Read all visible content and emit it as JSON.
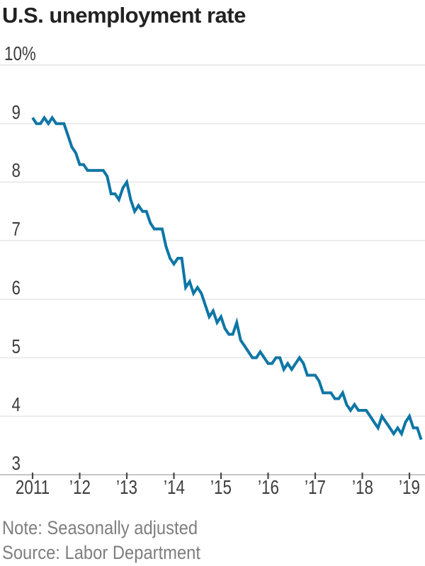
{
  "header": {
    "title": "U.S. unemployment rate"
  },
  "footer": {
    "note": "Note: Seasonally adjusted",
    "source": "Source: Labor Department"
  },
  "chart_data": {
    "type": "line",
    "title": "U.S. unemployment rate",
    "unit": "%",
    "frequency": "monthly",
    "x_start": "2011-01",
    "x_end": "2019-04",
    "ylim": [
      3,
      10
    ],
    "grid": "horizontal",
    "line_color": "#0d76a6",
    "gridline_color": "#e4e4e4",
    "axis_color": "#b3b3b3",
    "tick_color": "#474747",
    "label_color": "#3d3d3d",
    "series": [
      {
        "name": "U.S. unemployment rate",
        "values": [
          9.1,
          9.0,
          9.0,
          9.1,
          9.0,
          9.1,
          9.0,
          9.0,
          9.0,
          8.8,
          8.6,
          8.5,
          8.3,
          8.3,
          8.2,
          8.2,
          8.2,
          8.2,
          8.2,
          8.1,
          7.8,
          7.8,
          7.7,
          7.9,
          8.0,
          7.7,
          7.5,
          7.6,
          7.5,
          7.5,
          7.3,
          7.2,
          7.2,
          7.2,
          6.9,
          6.7,
          6.6,
          6.7,
          6.7,
          6.2,
          6.3,
          6.1,
          6.2,
          6.1,
          5.9,
          5.7,
          5.8,
          5.6,
          5.7,
          5.5,
          5.4,
          5.4,
          5.6,
          5.3,
          5.2,
          5.1,
          5.0,
          5.0,
          5.1,
          5.0,
          4.9,
          4.9,
          5.0,
          5.0,
          4.8,
          4.9,
          4.8,
          4.9,
          5.0,
          4.9,
          4.7,
          4.7,
          4.7,
          4.6,
          4.4,
          4.4,
          4.4,
          4.3,
          4.3,
          4.4,
          4.2,
          4.1,
          4.2,
          4.1,
          4.1,
          4.1,
          4.0,
          3.9,
          3.8,
          4.0,
          3.9,
          3.8,
          3.7,
          3.8,
          3.7,
          3.9,
          4.0,
          3.8,
          3.8,
          3.6
        ]
      }
    ],
    "yticks": [
      {
        "value": 10,
        "label": "10%"
      },
      {
        "value": 9,
        "label": "9"
      },
      {
        "value": 8,
        "label": "8"
      },
      {
        "value": 7,
        "label": "7"
      },
      {
        "value": 6,
        "label": "6"
      },
      {
        "value": 5,
        "label": "5"
      },
      {
        "value": 4,
        "label": "4"
      },
      {
        "value": 3,
        "label": "3"
      }
    ],
    "xticks": [
      {
        "month": 0,
        "label": "2011"
      },
      {
        "month": 12,
        "label": "’12"
      },
      {
        "month": 24,
        "label": "’13"
      },
      {
        "month": 36,
        "label": "’14"
      },
      {
        "month": 48,
        "label": "’15"
      },
      {
        "month": 60,
        "label": "’16"
      },
      {
        "month": 72,
        "label": "’17"
      },
      {
        "month": 84,
        "label": "’18"
      },
      {
        "month": 96,
        "label": "’19"
      }
    ]
  }
}
